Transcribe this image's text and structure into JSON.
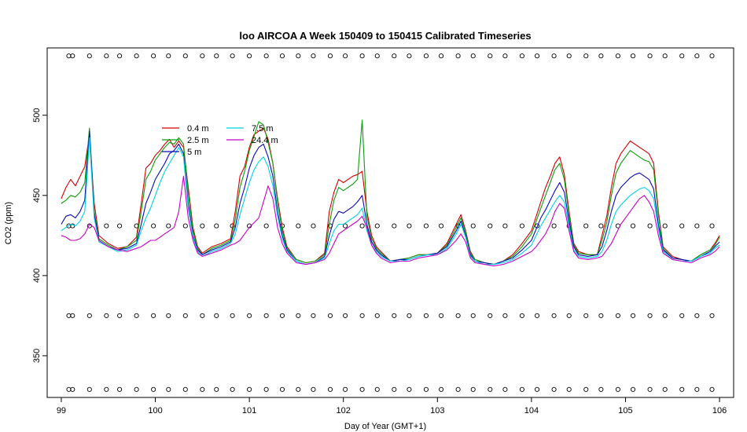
{
  "chart_data": {
    "type": "line",
    "title": "loo AIRCOA A  Week 150409 to 150415  Calibrated Timeseries",
    "xlabel": "Day of Year (GMT+1)",
    "ylabel": "CO2 (ppm)",
    "xlim": [
      98.85,
      106.15
    ],
    "ylim": [
      324,
      542
    ],
    "xticks": [
      99,
      100,
      101,
      102,
      103,
      104,
      105,
      106
    ],
    "yticks": [
      350,
      400,
      450,
      500
    ],
    "grid": false,
    "legend_position": "top-left",
    "series": [
      {
        "name": "0.4 m",
        "color": "#d40000",
        "x": [
          99.0,
          99.05,
          99.1,
          99.15,
          99.2,
          99.25,
          99.3,
          99.35,
          99.4,
          99.5,
          99.6,
          99.7,
          99.8,
          99.85,
          99.9,
          99.95,
          100.0,
          100.05,
          100.1,
          100.15,
          100.2,
          100.25,
          100.3,
          100.35,
          100.4,
          100.45,
          100.5,
          100.6,
          100.7,
          100.8,
          100.85,
          100.9,
          100.95,
          101.0,
          101.05,
          101.1,
          101.15,
          101.2,
          101.25,
          101.3,
          101.35,
          101.4,
          101.5,
          101.6,
          101.7,
          101.8,
          101.85,
          101.9,
          101.95,
          102.0,
          102.05,
          102.1,
          102.15,
          102.2,
          102.25,
          102.3,
          102.35,
          102.4,
          102.5,
          102.6,
          102.7,
          102.8,
          102.9,
          103.0,
          103.1,
          103.2,
          103.25,
          103.3,
          103.35,
          103.4,
          103.5,
          103.6,
          103.7,
          103.8,
          103.9,
          104.0,
          104.05,
          104.1,
          104.15,
          104.2,
          104.25,
          104.3,
          104.35,
          104.4,
          104.45,
          104.5,
          104.6,
          104.7,
          104.75,
          104.8,
          104.85,
          104.9,
          104.95,
          105.0,
          105.05,
          105.1,
          105.15,
          105.2,
          105.25,
          105.3,
          105.35,
          105.4,
          105.5,
          105.6,
          105.7,
          105.8,
          105.9,
          105.95,
          106.0
        ],
        "y": [
          448,
          455,
          460,
          456,
          462,
          468,
          488,
          445,
          425,
          420,
          417,
          418,
          424,
          445,
          467,
          470,
          475,
          478,
          482,
          485,
          480,
          484,
          480,
          455,
          430,
          418,
          414,
          418,
          420,
          423,
          440,
          462,
          468,
          480,
          488,
          490,
          492,
          485,
          470,
          448,
          430,
          418,
          410,
          408,
          409,
          414,
          440,
          452,
          460,
          458,
          460,
          462,
          463,
          465,
          440,
          425,
          418,
          415,
          409,
          410,
          411,
          413,
          413,
          414,
          420,
          432,
          438,
          428,
          415,
          410,
          408,
          407,
          409,
          413,
          420,
          428,
          437,
          446,
          455,
          462,
          470,
          474,
          463,
          440,
          420,
          415,
          413,
          413,
          425,
          437,
          455,
          470,
          476,
          480,
          484,
          482,
          480,
          478,
          476,
          470,
          440,
          418,
          412,
          410,
          409,
          413,
          416,
          420,
          425
        ]
      },
      {
        "name": "2.5 m",
        "color": "#0a9e0a",
        "x": [
          99.0,
          99.05,
          99.1,
          99.15,
          99.2,
          99.25,
          99.3,
          99.35,
          99.4,
          99.5,
          99.6,
          99.7,
          99.8,
          99.85,
          99.9,
          99.95,
          100.0,
          100.05,
          100.1,
          100.15,
          100.2,
          100.25,
          100.3,
          100.35,
          100.4,
          100.45,
          100.5,
          100.6,
          100.7,
          100.8,
          100.85,
          100.9,
          100.95,
          101.0,
          101.05,
          101.1,
          101.15,
          101.2,
          101.25,
          101.3,
          101.35,
          101.4,
          101.5,
          101.6,
          101.7,
          101.8,
          101.85,
          101.9,
          101.95,
          102.0,
          102.05,
          102.1,
          102.15,
          102.2,
          102.25,
          102.3,
          102.35,
          102.4,
          102.5,
          102.6,
          102.7,
          102.8,
          102.9,
          103.0,
          103.1,
          103.2,
          103.25,
          103.3,
          103.35,
          103.4,
          103.5,
          103.6,
          103.7,
          103.8,
          103.9,
          104.0,
          104.05,
          104.1,
          104.15,
          104.2,
          104.25,
          104.3,
          104.35,
          104.4,
          104.45,
          104.5,
          104.6,
          104.7,
          104.75,
          104.8,
          104.85,
          104.9,
          104.95,
          105.0,
          105.05,
          105.1,
          105.15,
          105.2,
          105.25,
          105.3,
          105.35,
          105.4,
          105.5,
          105.6,
          105.7,
          105.8,
          105.9,
          105.95,
          106.0
        ],
        "y": [
          445,
          447,
          450,
          449,
          452,
          458,
          492,
          440,
          423,
          419,
          416,
          418,
          422,
          440,
          460,
          465,
          472,
          476,
          480,
          483,
          482,
          486,
          482,
          452,
          428,
          417,
          413,
          417,
          419,
          422,
          435,
          455,
          465,
          478,
          487,
          496,
          494,
          483,
          470,
          446,
          428,
          417,
          410,
          408,
          409,
          413,
          432,
          447,
          455,
          453,
          455,
          457,
          460,
          497,
          437,
          423,
          417,
          414,
          409,
          410,
          411,
          413,
          413,
          414,
          419,
          430,
          436,
          427,
          414,
          410,
          408,
          407,
          409,
          412,
          418,
          426,
          434,
          442,
          450,
          458,
          466,
          470,
          460,
          438,
          419,
          414,
          413,
          413,
          422,
          433,
          450,
          464,
          470,
          474,
          478,
          476,
          474,
          472,
          471,
          466,
          438,
          417,
          411,
          410,
          409,
          413,
          416,
          419,
          424
        ]
      },
      {
        "name": "5 m",
        "color": "#0a0ab4",
        "x": [
          99.0,
          99.05,
          99.1,
          99.15,
          99.2,
          99.25,
          99.3,
          99.35,
          99.4,
          99.5,
          99.6,
          99.7,
          99.8,
          99.85,
          99.9,
          99.95,
          100.0,
          100.05,
          100.1,
          100.15,
          100.2,
          100.25,
          100.3,
          100.35,
          100.4,
          100.45,
          100.5,
          100.6,
          100.7,
          100.8,
          100.85,
          100.9,
          100.95,
          101.0,
          101.05,
          101.1,
          101.15,
          101.2,
          101.25,
          101.3,
          101.35,
          101.4,
          101.5,
          101.6,
          101.7,
          101.8,
          101.85,
          101.9,
          101.95,
          102.0,
          102.05,
          102.1,
          102.15,
          102.2,
          102.25,
          102.3,
          102.35,
          102.4,
          102.5,
          102.6,
          102.7,
          102.8,
          102.9,
          103.0,
          103.1,
          103.2,
          103.25,
          103.3,
          103.35,
          103.4,
          103.5,
          103.6,
          103.7,
          103.8,
          103.9,
          104.0,
          104.05,
          104.1,
          104.15,
          104.2,
          104.25,
          104.3,
          104.35,
          104.4,
          104.45,
          104.5,
          104.6,
          104.7,
          104.75,
          104.8,
          104.85,
          104.9,
          104.95,
          105.0,
          105.05,
          105.1,
          105.15,
          105.2,
          105.25,
          105.3,
          105.35,
          105.4,
          105.5,
          105.6,
          105.7,
          105.8,
          105.9,
          105.95,
          106.0
        ],
        "y": [
          432,
          437,
          438,
          436,
          440,
          447,
          490,
          438,
          422,
          418,
          416,
          417,
          420,
          432,
          445,
          452,
          460,
          465,
          470,
          476,
          478,
          482,
          476,
          445,
          425,
          416,
          413,
          416,
          418,
          421,
          430,
          445,
          455,
          467,
          475,
          480,
          482,
          474,
          462,
          440,
          425,
          416,
          409,
          407,
          408,
          412,
          425,
          435,
          440,
          439,
          441,
          443,
          446,
          450,
          432,
          421,
          416,
          413,
          409,
          410,
          410,
          412,
          413,
          414,
          418,
          428,
          434,
          425,
          413,
          409,
          408,
          407,
          409,
          411,
          416,
          422,
          429,
          436,
          441,
          447,
          453,
          458,
          452,
          434,
          418,
          413,
          412,
          413,
          418,
          428,
          440,
          450,
          455,
          458,
          461,
          463,
          464,
          462,
          460,
          454,
          432,
          416,
          411,
          410,
          409,
          412,
          415,
          418,
          421
        ]
      },
      {
        "name": "7.5 m",
        "color": "#00d2e6",
        "x": [
          99.0,
          99.05,
          99.1,
          99.15,
          99.2,
          99.25,
          99.3,
          99.35,
          99.4,
          99.5,
          99.6,
          99.7,
          99.8,
          99.85,
          99.9,
          99.95,
          100.0,
          100.05,
          100.1,
          100.15,
          100.2,
          100.25,
          100.3,
          100.35,
          100.4,
          100.45,
          100.5,
          100.6,
          100.7,
          100.8,
          100.85,
          100.9,
          100.95,
          101.0,
          101.05,
          101.1,
          101.15,
          101.2,
          101.25,
          101.3,
          101.35,
          101.4,
          101.5,
          101.6,
          101.7,
          101.8,
          101.85,
          101.9,
          101.95,
          102.0,
          102.05,
          102.1,
          102.15,
          102.2,
          102.25,
          102.3,
          102.35,
          102.4,
          102.5,
          102.6,
          102.7,
          102.8,
          102.9,
          103.0,
          103.1,
          103.2,
          103.25,
          103.3,
          103.35,
          103.4,
          103.5,
          103.6,
          103.7,
          103.8,
          103.9,
          104.0,
          104.05,
          104.1,
          104.15,
          104.2,
          104.25,
          104.3,
          104.35,
          104.4,
          104.45,
          104.5,
          104.6,
          104.7,
          104.75,
          104.8,
          104.85,
          104.9,
          104.95,
          105.0,
          105.05,
          105.1,
          105.15,
          105.2,
          105.25,
          105.3,
          105.35,
          105.4,
          105.5,
          105.6,
          105.7,
          105.8,
          105.9,
          105.95,
          106.0
        ],
        "y": [
          428,
          430,
          432,
          431,
          434,
          440,
          486,
          436,
          421,
          418,
          415,
          416,
          419,
          428,
          436,
          442,
          450,
          458,
          465,
          470,
          475,
          480,
          474,
          442,
          424,
          415,
          412,
          415,
          417,
          420,
          426,
          438,
          448,
          458,
          466,
          471,
          474,
          468,
          456,
          437,
          423,
          415,
          409,
          407,
          408,
          411,
          420,
          428,
          432,
          432,
          434,
          436,
          438,
          442,
          428,
          419,
          415,
          412,
          409,
          409,
          410,
          412,
          413,
          413,
          417,
          426,
          432,
          424,
          412,
          409,
          407,
          407,
          408,
          410,
          414,
          419,
          425,
          431,
          436,
          441,
          446,
          450,
          446,
          431,
          416,
          412,
          411,
          412,
          415,
          422,
          432,
          440,
          444,
          447,
          450,
          452,
          454,
          455,
          453,
          448,
          429,
          415,
          410,
          409,
          409,
          412,
          414,
          417,
          419
        ]
      },
      {
        "name": "24.4 m",
        "color": "#c800c8",
        "x": [
          99.0,
          99.05,
          99.1,
          99.15,
          99.2,
          99.25,
          99.3,
          99.35,
          99.4,
          99.5,
          99.6,
          99.7,
          99.8,
          99.85,
          99.9,
          99.95,
          100.0,
          100.05,
          100.1,
          100.15,
          100.2,
          100.25,
          100.3,
          100.35,
          100.4,
          100.45,
          100.5,
          100.6,
          100.7,
          100.8,
          100.85,
          100.9,
          100.95,
          101.0,
          101.05,
          101.1,
          101.15,
          101.2,
          101.25,
          101.3,
          101.35,
          101.4,
          101.5,
          101.6,
          101.7,
          101.8,
          101.85,
          101.9,
          101.95,
          102.0,
          102.05,
          102.1,
          102.15,
          102.2,
          102.25,
          102.3,
          102.35,
          102.4,
          102.5,
          102.6,
          102.7,
          102.8,
          102.9,
          103.0,
          103.1,
          103.2,
          103.25,
          103.3,
          103.35,
          103.4,
          103.5,
          103.6,
          103.7,
          103.8,
          103.9,
          104.0,
          104.05,
          104.1,
          104.15,
          104.2,
          104.25,
          104.3,
          104.35,
          104.4,
          104.45,
          104.5,
          104.6,
          104.7,
          104.75,
          104.8,
          104.85,
          104.9,
          104.95,
          105.0,
          105.05,
          105.1,
          105.15,
          105.2,
          105.25,
          105.3,
          105.35,
          105.4,
          105.5,
          105.6,
          105.7,
          105.8,
          105.9,
          105.95,
          106.0
        ],
        "y": [
          425,
          424,
          422,
          422,
          423,
          426,
          432,
          430,
          422,
          418,
          416,
          415,
          417,
          418,
          420,
          422,
          422,
          424,
          426,
          428,
          430,
          440,
          462,
          436,
          422,
          414,
          412,
          414,
          416,
          419,
          420,
          422,
          426,
          430,
          433,
          436,
          446,
          456,
          448,
          430,
          420,
          414,
          408,
          407,
          408,
          410,
          414,
          420,
          426,
          428,
          430,
          432,
          434,
          437,
          430,
          419,
          414,
          411,
          408,
          409,
          409,
          411,
          412,
          413,
          416,
          422,
          426,
          421,
          411,
          408,
          407,
          406,
          407,
          409,
          412,
          415,
          418,
          422,
          426,
          432,
          440,
          445,
          442,
          428,
          415,
          411,
          410,
          411,
          412,
          416,
          420,
          426,
          432,
          436,
          440,
          444,
          448,
          450,
          446,
          440,
          425,
          414,
          410,
          409,
          408,
          411,
          413,
          415,
          418
        ]
      }
    ],
    "flag_points": {
      "x": [
        99.08,
        99.12,
        99.3,
        99.48,
        99.62,
        99.8,
        99.98,
        100.14,
        100.32,
        100.5,
        100.65,
        100.82,
        101.0,
        101.18,
        101.35,
        101.52,
        101.68,
        101.86,
        102.02,
        102.2,
        102.36,
        102.54,
        102.7,
        102.88,
        103.04,
        103.22,
        103.38,
        103.56,
        103.72,
        103.9,
        104.06,
        104.24,
        104.4,
        104.58,
        104.74,
        104.92,
        105.08,
        105.26,
        105.42,
        105.6,
        105.76,
        105.92
      ],
      "levels": [
        537,
        431,
        375,
        329
      ]
    }
  }
}
